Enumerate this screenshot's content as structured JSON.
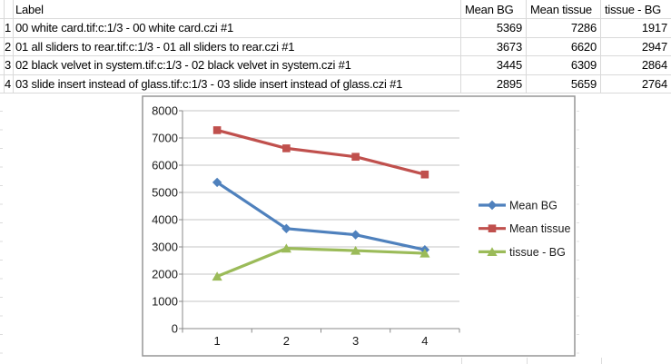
{
  "colors": {
    "sheet_grid": "#d9d9d9",
    "chart_border": "#969696",
    "plot_gridline": "#c6c6c6",
    "axis_line": "#898989",
    "text": "#000000",
    "series_blue": "#4F81BD",
    "series_red": "#C0504D",
    "series_green": "#9BBB59"
  },
  "table": {
    "columns": [
      "Label",
      "Mean BG",
      "Mean tissue",
      "tissue - BG"
    ],
    "rows": [
      {
        "num": "1",
        "label": "00 white card.tif:c:1/3 - 00 white card.czi #1",
        "values": [
          5369,
          7286,
          1917
        ]
      },
      {
        "num": "2",
        "label": "01 all sliders to rear.tif:c:1/3 - 01 all sliders to rear.czi #1",
        "values": [
          3673,
          6620,
          2947
        ]
      },
      {
        "num": "3",
        "label": "02 black velvet in system.tif:c:1/3 - 02 black velvet in system.czi #1",
        "values": [
          3445,
          6309,
          2864
        ]
      },
      {
        "num": "4",
        "label": "03 slide insert instead of glass.tif:c:1/3 - 03 slide insert instead of glass.czi #1",
        "values": [
          2895,
          5659,
          2764
        ]
      }
    ]
  },
  "chart_data": {
    "type": "line",
    "x": [
      "1",
      "2",
      "3",
      "4"
    ],
    "ylim": [
      0,
      8000
    ],
    "ytick_step": 1000,
    "grid": true,
    "legend_position": "right",
    "series": [
      {
        "name": "Mean BG",
        "marker": "diamond",
        "color": "#4F81BD",
        "values": [
          5369,
          3673,
          3445,
          2895
        ]
      },
      {
        "name": "Mean tissue",
        "marker": "square",
        "color": "#C0504D",
        "values": [
          7286,
          6620,
          6309,
          5659
        ]
      },
      {
        "name": "tissue - BG",
        "marker": "triangle",
        "color": "#9BBB59",
        "values": [
          1917,
          2947,
          2864,
          2764
        ]
      }
    ]
  }
}
